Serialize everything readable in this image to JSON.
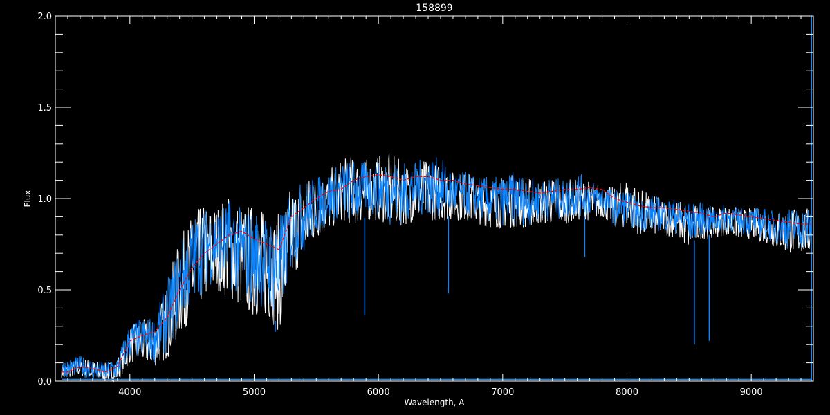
{
  "chart_data": {
    "type": "line",
    "title": "158899",
    "xlabel": "Wavelength, A",
    "ylabel": "Flux",
    "xlim": [
      3400,
      9500
    ],
    "ylim": [
      0.0,
      2.0
    ],
    "xticks": [
      4000,
      5000,
      6000,
      7000,
      8000,
      9000
    ],
    "xtick_labels": [
      "4000",
      "5000",
      "6000",
      "7000",
      "8000",
      "9000"
    ],
    "yticks": [
      0.0,
      0.5,
      1.0,
      1.5,
      2.0
    ],
    "ytick_labels": [
      "0.0",
      "0.5",
      "1.0",
      "1.5",
      "2.0"
    ],
    "x_minor_step": 100,
    "y_minor_step": 0.1,
    "grid": false,
    "background": "#000000",
    "x": [
      3450,
      3500,
      3600,
      3700,
      3800,
      3900,
      4000,
      4100,
      4200,
      4300,
      4400,
      4500,
      4600,
      4700,
      4800,
      4900,
      5000,
      5100,
      5200,
      5300,
      5400,
      5500,
      5600,
      5700,
      5800,
      5900,
      6000,
      6100,
      6200,
      6300,
      6400,
      6500,
      6600,
      6700,
      6800,
      6900,
      7000,
      7100,
      7200,
      7300,
      7400,
      7500,
      7600,
      7700,
      7800,
      7900,
      8000,
      8100,
      8200,
      8300,
      8400,
      8500,
      8600,
      8700,
      8800,
      8900,
      9000,
      9100,
      9200,
      9300,
      9400,
      9480
    ],
    "series": [
      {
        "color": "#ffffff",
        "style": "observed spectrum",
        "lower": [
          0.02,
          0.02,
          0.03,
          0.0,
          0.0,
          0.0,
          0.1,
          0.1,
          0.08,
          0.12,
          0.25,
          0.35,
          0.45,
          0.5,
          0.45,
          0.4,
          0.35,
          0.35,
          0.27,
          0.55,
          0.68,
          0.78,
          0.82,
          0.88,
          0.85,
          0.88,
          0.88,
          0.85,
          0.85,
          0.88,
          0.88,
          0.88,
          0.88,
          0.88,
          0.86,
          0.84,
          0.84,
          0.84,
          0.84,
          0.86,
          0.86,
          0.86,
          0.88,
          0.88,
          0.9,
          0.84,
          0.84,
          0.8,
          0.8,
          0.8,
          0.78,
          0.72,
          0.78,
          0.78,
          0.8,
          0.78,
          0.78,
          0.76,
          0.73,
          0.7,
          0.7,
          0.7
        ],
        "upper": [
          0.1,
          0.1,
          0.13,
          0.12,
          0.1,
          0.13,
          0.3,
          0.34,
          0.34,
          0.55,
          0.78,
          0.92,
          0.98,
          0.98,
          1.03,
          0.98,
          0.98,
          0.93,
          0.92,
          1.08,
          1.12,
          1.14,
          1.17,
          1.22,
          1.24,
          1.22,
          1.24,
          1.25,
          1.2,
          1.2,
          1.22,
          1.2,
          1.15,
          1.15,
          1.12,
          1.12,
          1.12,
          1.14,
          1.12,
          1.1,
          1.12,
          1.1,
          1.12,
          1.1,
          1.08,
          1.06,
          1.13,
          1.06,
          1.02,
          1.0,
          1.0,
          0.97,
          0.97,
          0.95,
          0.97,
          0.95,
          0.95,
          0.95,
          0.93,
          0.95,
          0.95,
          0.95
        ]
      },
      {
        "color": "#0a84ff",
        "style": "model spectrum",
        "lower": [
          0.02,
          0.02,
          0.03,
          0.0,
          0.0,
          0.0,
          0.12,
          0.12,
          0.1,
          0.15,
          0.3,
          0.4,
          0.5,
          0.55,
          0.5,
          0.45,
          0.4,
          0.4,
          0.3,
          0.6,
          0.7,
          0.8,
          0.85,
          0.9,
          0.85,
          0.9,
          0.9,
          0.85,
          0.85,
          0.9,
          0.9,
          0.9,
          0.9,
          0.9,
          0.9,
          0.85,
          0.85,
          0.85,
          0.85,
          0.88,
          0.88,
          0.88,
          0.9,
          0.9,
          0.92,
          0.85,
          0.85,
          0.82,
          0.82,
          0.82,
          0.8,
          0.75,
          0.8,
          0.8,
          0.82,
          0.8,
          0.8,
          0.78,
          0.75,
          0.72,
          0.72,
          0.72
        ],
        "upper": [
          0.12,
          0.12,
          0.14,
          0.12,
          0.1,
          0.14,
          0.32,
          0.35,
          0.35,
          0.55,
          0.75,
          0.9,
          0.95,
          0.95,
          1.0,
          0.95,
          0.95,
          0.9,
          0.9,
          1.05,
          1.1,
          1.12,
          1.15,
          1.2,
          1.22,
          1.2,
          1.2,
          1.22,
          1.2,
          1.2,
          1.24,
          1.22,
          1.15,
          1.15,
          1.12,
          1.12,
          1.12,
          1.15,
          1.12,
          1.1,
          1.12,
          1.1,
          1.15,
          1.1,
          1.08,
          1.05,
          1.05,
          1.0,
          1.02,
          1.0,
          1.0,
          0.98,
          0.98,
          0.95,
          0.97,
          0.95,
          0.95,
          0.95,
          0.93,
          0.95,
          0.95,
          0.95
        ],
        "absorption_lines": [
          {
            "x": 5170,
            "y": 0.27
          },
          {
            "x": 5890,
            "y": 0.36
          },
          {
            "x": 6563,
            "y": 0.48
          },
          {
            "x": 7660,
            "y": 0.68
          },
          {
            "x": 8542,
            "y": 0.2
          },
          {
            "x": 8662,
            "y": 0.22
          }
        ],
        "vertical_line_x": 9485,
        "baseline_y": 0.01
      },
      {
        "color": "#ff0000",
        "style": "dashed smoothed",
        "values": [
          0.05,
          0.05,
          0.08,
          0.07,
          0.05,
          0.08,
          0.22,
          0.25,
          0.27,
          0.35,
          0.5,
          0.62,
          0.7,
          0.75,
          0.8,
          0.82,
          0.78,
          0.75,
          0.72,
          0.9,
          0.95,
          1.0,
          1.04,
          1.05,
          1.1,
          1.12,
          1.13,
          1.12,
          1.1,
          1.12,
          1.12,
          1.1,
          1.1,
          1.08,
          1.07,
          1.06,
          1.05,
          1.05,
          1.04,
          1.03,
          1.04,
          1.05,
          1.05,
          1.06,
          1.05,
          1.0,
          0.98,
          0.96,
          0.95,
          0.95,
          0.94,
          0.93,
          0.92,
          0.9,
          0.92,
          0.91,
          0.9,
          0.89,
          0.88,
          0.87,
          0.86,
          0.86
        ]
      }
    ]
  }
}
